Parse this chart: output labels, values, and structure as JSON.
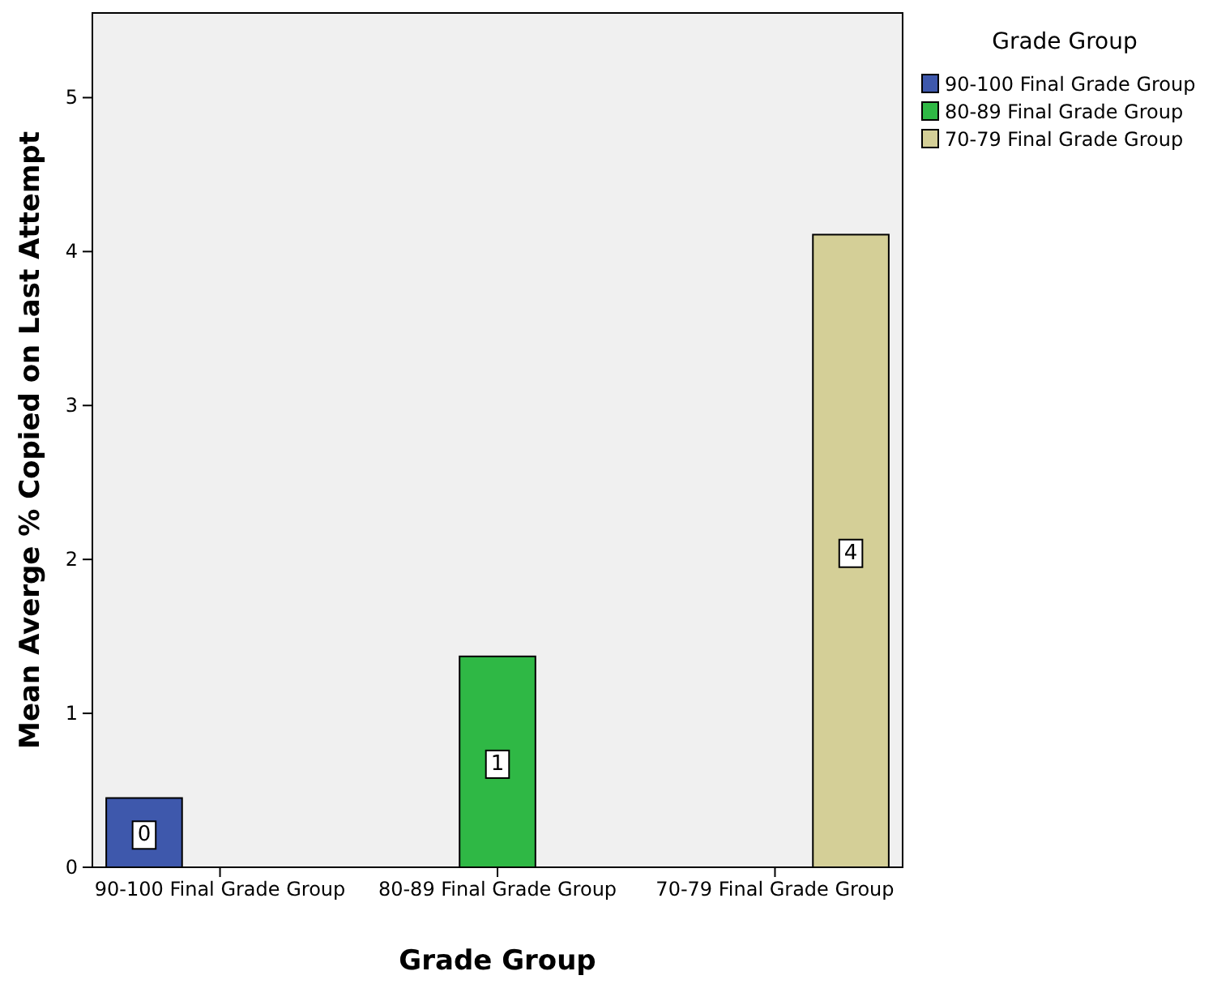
{
  "chart_data": {
    "type": "bar",
    "xlabel": "Grade Group",
    "ylabel": "Mean Averge % Copied on Last Attempt",
    "legend_title": "Grade Group",
    "categories": [
      "90-100 Final Grade Group",
      "80-89 Final Grade Group",
      "70-79 Final Grade Group"
    ],
    "series": [
      {
        "name": "90-100 Final Grade Group",
        "color": "#3e58ac",
        "values": [
          0.45,
          null,
          null
        ],
        "value_labels": [
          "0",
          null,
          null
        ]
      },
      {
        "name": "80-89 Final Grade Group",
        "color": "#2fb845",
        "values": [
          null,
          1.37,
          null
        ],
        "value_labels": [
          null,
          "1",
          null
        ]
      },
      {
        "name": "70-79 Final Grade Group",
        "color": "#d4cf97",
        "values": [
          null,
          null,
          4.11
        ],
        "value_labels": [
          null,
          null,
          "4"
        ]
      }
    ],
    "ylim": [
      0,
      5.55
    ],
    "yticks": [
      0,
      1,
      2,
      3,
      4,
      5
    ],
    "grid": false,
    "legend": "top right"
  }
}
